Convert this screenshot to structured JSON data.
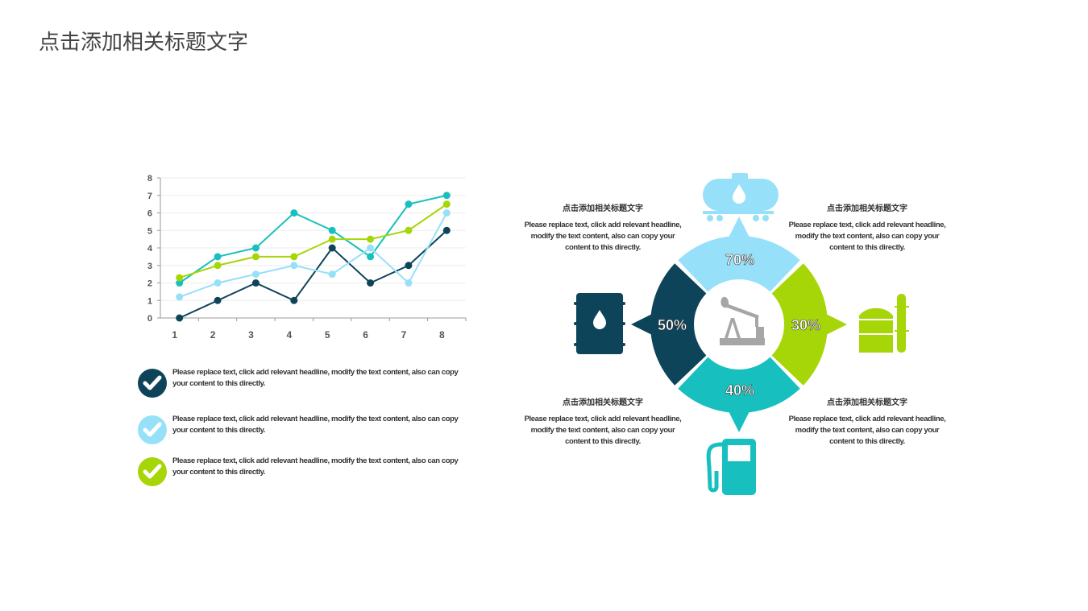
{
  "title": "点击添加相关标题文字",
  "colors": {
    "navy": "#0e4459",
    "teal": "#17c0bf",
    "green": "#a6d608",
    "lightblue": "#97e0f9",
    "gray": "#a6a6a6"
  },
  "chart_data": {
    "type": "line",
    "categories": [
      "1",
      "2",
      "3",
      "4",
      "5",
      "6",
      "7",
      "8"
    ],
    "ylim": [
      0,
      8
    ],
    "yticks": [
      "0",
      "1",
      "2",
      "3",
      "4",
      "5",
      "6",
      "7",
      "8"
    ],
    "grid": true,
    "series": [
      {
        "color": "#0e4459",
        "values": [
          0,
          1,
          2,
          1,
          4,
          2,
          3,
          5
        ]
      },
      {
        "color": "#17c0bf",
        "values": [
          2,
          3.5,
          4,
          6,
          5,
          3.5,
          6.5,
          7
        ]
      },
      {
        "color": "#a6d608",
        "values": [
          2.3,
          3,
          3.5,
          3.5,
          4.5,
          4.5,
          5,
          6.5
        ]
      },
      {
        "color": "#97e0f9",
        "values": [
          1.2,
          2,
          2.5,
          3,
          2.5,
          4,
          2,
          6
        ]
      }
    ]
  },
  "bullets": [
    {
      "icon": "check-icon",
      "color": "#0e4459",
      "text": "Please replace text, click add relevant headline, modify the text content, also can copy your content to this directly."
    },
    {
      "icon": "check-icon",
      "color": "#97e0f9",
      "text": "Please replace text, click add relevant headline, modify the text content, also can copy your content to this directly."
    },
    {
      "icon": "check-icon",
      "color": "#a6d608",
      "text": "Please replace text, click add relevant headline, modify the text content, also can copy your content to this directly."
    }
  ],
  "ring": {
    "center_icon": "oil-pumpjack-icon",
    "segments": [
      {
        "label": "70%",
        "value": 70,
        "color": "#97e0f9",
        "icon": "oil-tanker-truck-icon"
      },
      {
        "label": "30%",
        "value": 30,
        "color": "#a6d608",
        "icon": "refinery-tank-icon"
      },
      {
        "label": "40%",
        "value": 40,
        "color": "#17c0bf",
        "icon": "gas-pump-icon"
      },
      {
        "label": "50%",
        "value": 50,
        "color": "#0e4459",
        "icon": "oil-barrel-icon"
      }
    ]
  },
  "blocks": [
    {
      "heading": "点击添加相关标题文字",
      "text": "Please replace text, click add relevant headline, modify the text content, also can copy your content to this directly."
    },
    {
      "heading": "点击添加相关标题文字",
      "text": "Please replace text, click add relevant headline, modify the text content, also can copy your content to this directly."
    },
    {
      "heading": "点击添加相关标题文字",
      "text": "Please replace text, click add relevant headline, modify the text content, also can copy your content to this directly."
    },
    {
      "heading": "点击添加相关标题文字",
      "text": "Please replace text, click add relevant headline, modify the text content, also can copy your content to this directly."
    }
  ]
}
